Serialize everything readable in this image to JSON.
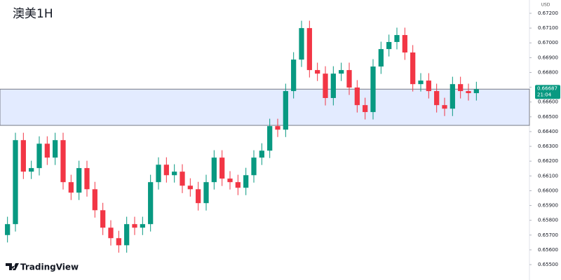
{
  "chart_data": {
    "type": "candlestick",
    "title": "澳美1H",
    "currency": "USD",
    "brand": "TradingView",
    "open": [
      0.657,
      0.65774,
      0.66342,
      0.66129,
      0.66153,
      0.66318,
      0.66224,
      0.66342,
      0.66058,
      0.65987,
      0.66153,
      0.6601,
      0.65868,
      0.6575,
      0.65679,
      0.65631,
      0.65774,
      0.6575,
      0.65774,
      0.66058,
      0.66176,
      0.66105,
      0.66129,
      0.66034,
      0.6601,
      0.65916,
      0.66058,
      0.66224,
      0.66082,
      0.66058,
      0.6602,
      0.66105,
      0.66224,
      0.66271,
      0.66437,
      0.66413,
      0.66674,
      0.66887,
      0.671,
      0.66816,
      0.66792,
      0.66627,
      0.66792,
      0.66816,
      0.66698,
      0.66579,
      0.66532,
      0.6684,
      0.66958,
      0.67006,
      0.67053,
      0.66935,
      0.66721,
      0.66745,
      0.66674,
      0.66579,
      0.66555,
      0.66721,
      0.66674,
      0.6666
    ],
    "high": [
      0.65824,
      0.66392,
      0.66392,
      0.66203,
      0.66368,
      0.66368,
      0.66392,
      0.66392,
      0.66108,
      0.66203,
      0.66203,
      0.6606,
      0.65918,
      0.658,
      0.65729,
      0.65824,
      0.65824,
      0.65824,
      0.66108,
      0.66226,
      0.66226,
      0.66179,
      0.66179,
      0.66084,
      0.6606,
      0.66108,
      0.66274,
      0.66274,
      0.66132,
      0.66108,
      0.66155,
      0.66274,
      0.66321,
      0.66487,
      0.66487,
      0.66724,
      0.66937,
      0.6715,
      0.6715,
      0.66866,
      0.66842,
      0.66842,
      0.66866,
      0.66866,
      0.66748,
      0.66629,
      0.6689,
      0.67008,
      0.67056,
      0.67103,
      0.67103,
      0.66985,
      0.66795,
      0.66795,
      0.66724,
      0.66629,
      0.66771,
      0.66771,
      0.66724,
      0.66737
    ],
    "low": [
      0.6565,
      0.65724,
      0.66079,
      0.66079,
      0.66103,
      0.66174,
      0.66174,
      0.66008,
      0.65937,
      0.65937,
      0.6596,
      0.65818,
      0.657,
      0.65629,
      0.65581,
      0.65581,
      0.657,
      0.657,
      0.65724,
      0.66008,
      0.66055,
      0.66055,
      0.65984,
      0.6596,
      0.65866,
      0.65866,
      0.66008,
      0.66032,
      0.66008,
      0.6597,
      0.6597,
      0.66055,
      0.66174,
      0.66221,
      0.66363,
      0.66363,
      0.66624,
      0.66837,
      0.66766,
      0.66742,
      0.66577,
      0.66577,
      0.66742,
      0.66648,
      0.66529,
      0.66482,
      0.66482,
      0.6679,
      0.66908,
      0.66956,
      0.66885,
      0.66671,
      0.66671,
      0.66624,
      0.66529,
      0.66505,
      0.66505,
      0.66624,
      0.6661,
      0.6661
    ],
    "close": [
      0.65774,
      0.66342,
      0.66129,
      0.66153,
      0.66318,
      0.66224,
      0.66342,
      0.66058,
      0.65987,
      0.66153,
      0.6601,
      0.65868,
      0.6575,
      0.65679,
      0.65631,
      0.65774,
      0.6575,
      0.65774,
      0.66058,
      0.66176,
      0.66105,
      0.66129,
      0.66034,
      0.6601,
      0.65916,
      0.66058,
      0.66224,
      0.66082,
      0.66058,
      0.6602,
      0.66105,
      0.66224,
      0.66271,
      0.66437,
      0.66413,
      0.66674,
      0.66887,
      0.671,
      0.66816,
      0.66792,
      0.66627,
      0.66792,
      0.66816,
      0.66698,
      0.66579,
      0.66532,
      0.6684,
      0.66958,
      0.67006,
      0.67053,
      0.66935,
      0.66721,
      0.66745,
      0.66674,
      0.66579,
      0.66555,
      0.66721,
      0.66674,
      0.6666,
      0.66687
    ],
    "up_color": "#089981",
    "down_color": "#f23645",
    "zone": [
      0.66442,
      0.66687
    ],
    "zone_color": "#e3ebff",
    "last_price": {
      "value": 0.66687,
      "label": "0.66687"
    },
    "countdown": "21:04",
    "ylim": [
      0.65396,
      0.6729
    ],
    "yticks": [
      {
        "value": 0.655,
        "label": "0.65500"
      },
      {
        "value": 0.656,
        "label": "0.65600"
      },
      {
        "value": 0.657,
        "label": "0.65700"
      },
      {
        "value": 0.658,
        "label": "0.65800"
      },
      {
        "value": 0.659,
        "label": "0.65900"
      },
      {
        "value": 0.66,
        "label": "0.66000"
      },
      {
        "value": 0.661,
        "label": "0.66100"
      },
      {
        "value": 0.662,
        "label": "0.66200"
      },
      {
        "value": 0.663,
        "label": "0.66300"
      },
      {
        "value": 0.664,
        "label": "0.66400"
      },
      {
        "value": 0.665,
        "label": "0.66500"
      },
      {
        "value": 0.666,
        "label": "0.66600"
      },
      {
        "value": 0.667,
        "label": "0.66700"
      },
      {
        "value": 0.668,
        "label": "0.66800"
      },
      {
        "value": 0.669,
        "label": "0.66900"
      },
      {
        "value": 0.67,
        "label": "0.67000"
      },
      {
        "value": 0.671,
        "label": "0.67100"
      },
      {
        "value": 0.672,
        "label": "0.67200"
      }
    ]
  }
}
